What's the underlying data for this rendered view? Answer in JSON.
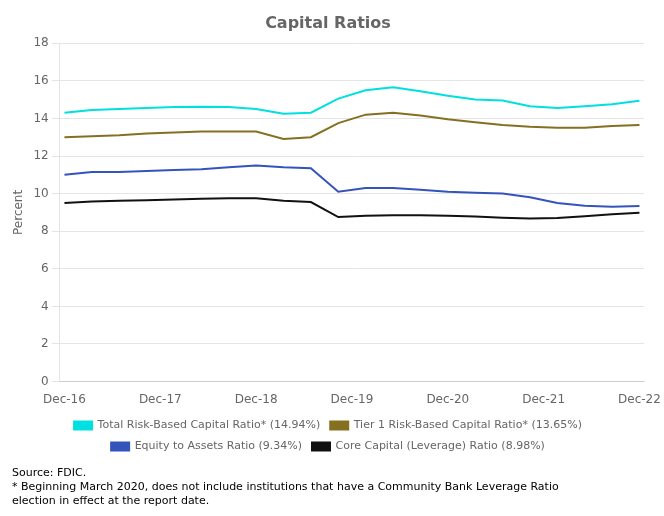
{
  "chart_data": {
    "type": "line",
    "title": "Capital Ratios",
    "ylabel": "Percent",
    "annotations": [
      "Source: FDIC.",
      "* Beginning March 2020, does not include institutions that have a Community Bank Leverage Ratio\nelection in effect at the report date."
    ],
    "x": [
      0,
      0.2857142857142857,
      0.5714285714285714,
      0.8571428571428571,
      1.1428571428571428,
      1.4285714285714286,
      1.7142857142857142,
      2.0,
      2.2857142857142856,
      2.571428571428571,
      2.857142857142857,
      3.142857142857143,
      3.4285714285714284,
      3.7142857142857144,
      4.0,
      4.285714285714286,
      4.571428571428571,
      4.857142857142857,
      5.142857142857142,
      5.428571428571428,
      5.714285714285714,
      6.0
    ],
    "xlim": [
      -0.05,
      6.05
    ],
    "xticks": [
      {
        "value": 0,
        "label": "Dec-16"
      },
      {
        "value": 1,
        "label": "Dec-17"
      },
      {
        "value": 2,
        "label": "Dec-18"
      },
      {
        "value": 3,
        "label": "Dec-19"
      },
      {
        "value": 4,
        "label": "Dec-20"
      },
      {
        "value": 5,
        "label": "Dec-21"
      },
      {
        "value": 6,
        "label": "Dec-22"
      }
    ],
    "ylim": [
      0,
      18
    ],
    "yticks": [
      0,
      2,
      4,
      6,
      8,
      10,
      12,
      14,
      16,
      18
    ],
    "grid": "y",
    "legend": "bottom",
    "series": [
      {
        "name": "Total Risk-Based Capital Ratio* (14.94%)",
        "color": "#00e0e0",
        "values": [
          14.3,
          14.45,
          14.5,
          14.55,
          14.6,
          14.62,
          14.6,
          14.5,
          14.25,
          14.3,
          15.05,
          15.5,
          15.65,
          15.45,
          15.2,
          15.0,
          14.95,
          14.65,
          14.55,
          14.65,
          14.75,
          14.94
        ]
      },
      {
        "name": "Tier 1 Risk-Based Capital Ratio* (13.65%)",
        "color": "#857020",
        "values": [
          13.0,
          13.05,
          13.1,
          13.2,
          13.25,
          13.3,
          13.3,
          13.3,
          12.9,
          13.0,
          13.75,
          14.2,
          14.3,
          14.15,
          13.95,
          13.8,
          13.65,
          13.55,
          13.5,
          13.5,
          13.6,
          13.65
        ]
      },
      {
        "name": "Equity to Assets Ratio (9.34%)",
        "color": "#3355bb",
        "values": [
          11.0,
          11.15,
          11.15,
          11.2,
          11.25,
          11.3,
          11.4,
          11.5,
          11.4,
          11.35,
          10.1,
          10.3,
          10.3,
          10.2,
          10.1,
          10.05,
          10.0,
          9.8,
          9.5,
          9.35,
          9.3,
          9.34
        ]
      },
      {
        "name": "Core Capital (Leverage) Ratio (8.98%)",
        "color": "#111111",
        "values": [
          9.5,
          9.58,
          9.62,
          9.65,
          9.68,
          9.72,
          9.75,
          9.75,
          9.62,
          9.55,
          8.75,
          8.82,
          8.85,
          8.85,
          8.82,
          8.78,
          8.72,
          8.68,
          8.7,
          8.8,
          8.9,
          8.98
        ]
      }
    ]
  }
}
